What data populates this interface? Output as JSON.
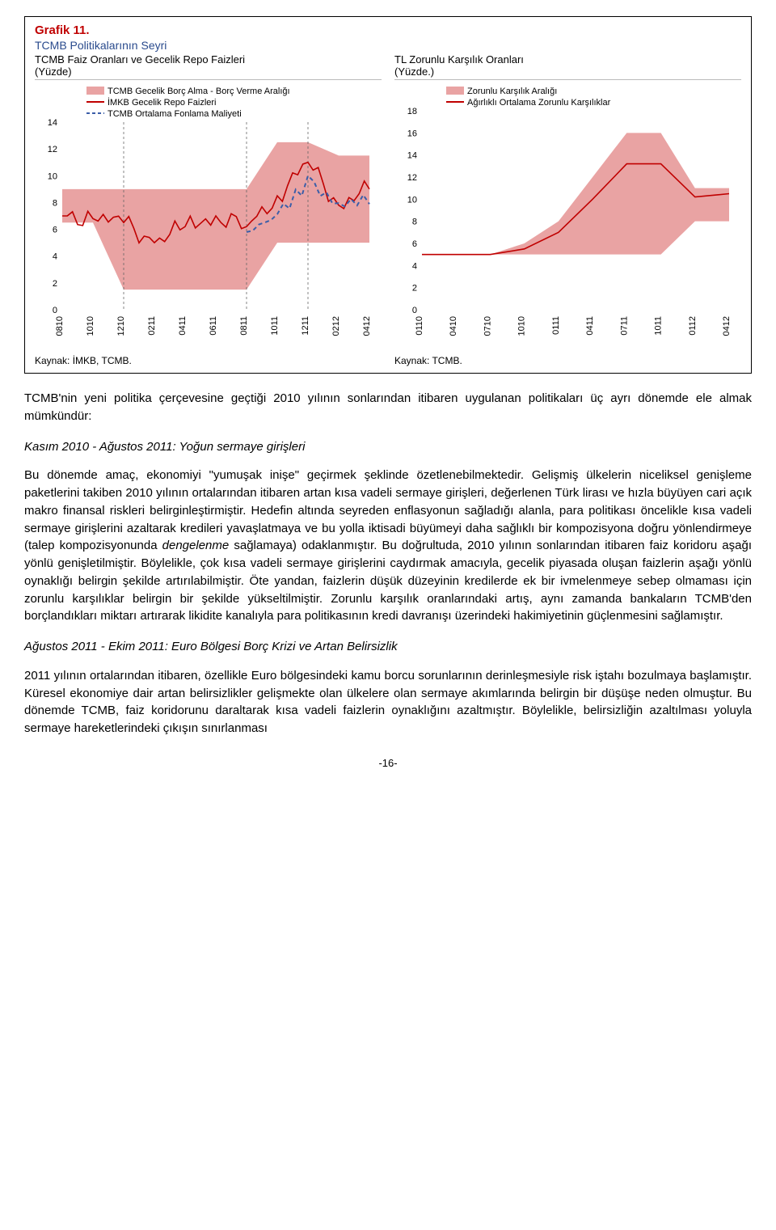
{
  "charts": {
    "grafik_label": "Grafik 11.",
    "grafik_subtitle": "TCMB Politikalarının Seyri",
    "left": {
      "header_line1": "TCMB Faiz Oranları ve Gecelik Repo Faizleri",
      "header_line2": "(Yüzde)",
      "legend": {
        "area": "TCMB Gecelik Borç Alma - Borç Verme Aralığı",
        "line_red": "İMKB Gecelik Repo Faizleri",
        "line_dash": "TCMB Ortalama Fonlama Maliyeti"
      },
      "ylim": [
        0,
        14
      ],
      "ytick_step": 2,
      "x_labels": [
        "0810",
        "1010",
        "1210",
        "0211",
        "0411",
        "0611",
        "0811",
        "1011",
        "1211",
        "0212",
        "0412"
      ],
      "area_low": [
        6.5,
        6.5,
        1.5,
        1.5,
        1.5,
        1.5,
        1.5,
        5.0,
        5.0,
        5.0,
        5.0
      ],
      "area_high": [
        9.0,
        9.0,
        9.0,
        9.0,
        9.0,
        9.0,
        9.0,
        12.5,
        12.5,
        11.5,
        11.5
      ],
      "line_red_pts": [
        7.0,
        6.8,
        6.5,
        5.0,
        6.2,
        7.0,
        6.2,
        8.5,
        11.0,
        7.8,
        9.0
      ],
      "line_dash_pts": [
        null,
        null,
        null,
        null,
        null,
        null,
        5.8,
        7.0,
        9.5,
        7.8,
        8.3
      ],
      "vlines_at": [
        2,
        6,
        8
      ],
      "colors": {
        "area": "#e9a3a3",
        "line_red": "#c00000",
        "line_dash": "#3b5ea8",
        "grid": "#cfcfcf",
        "axis_text": "#000"
      },
      "kaynak": "Kaynak: İMKB, TCMB."
    },
    "right": {
      "header_line1": "TL Zorunlu Karşılık Oranları",
      "header_line2": "(Yüzde.)",
      "legend": {
        "area": "Zorunlu Karşılık Aralığı",
        "line_red": "Ağırlıklı Ortalama Zorunlu Karşılıklar"
      },
      "ylim": [
        0,
        18
      ],
      "ytick_step": 2,
      "x_labels": [
        "0110",
        "0410",
        "0710",
        "1010",
        "0111",
        "0411",
        "0711",
        "1011",
        "0112",
        "0412"
      ],
      "area_low": [
        5.0,
        5.0,
        5.0,
        5.0,
        5.0,
        5.0,
        5.0,
        5.0,
        8.0,
        8.0
      ],
      "area_high": [
        5.0,
        5.0,
        5.0,
        6.0,
        8.0,
        12.0,
        16.0,
        16.0,
        11.0,
        11.0
      ],
      "line_red_pts": [
        5.0,
        5.0,
        5.0,
        5.5,
        7.0,
        10.0,
        13.2,
        13.2,
        10.2,
        10.5
      ],
      "colors": {
        "area": "#e9a3a3",
        "line_red": "#c00000",
        "grid": "#cfcfcf",
        "axis_text": "#000"
      },
      "kaynak": "Kaynak: TCMB."
    }
  },
  "body": {
    "p1": "TCMB'nin yeni politika çerçevesine geçtiği 2010 yılının sonlarından itibaren uygulanan politikaları üç ayrı dönemde ele almak mümkündür:",
    "s1": "Kasım 2010 - Ağustos 2011: Yoğun sermaye girişleri",
    "p2a": "Bu dönemde amaç, ekonomiyi \"yumuşak inişe\" geçirmek şeklinde özetlenebilmektedir. Gelişmiş ülkelerin niceliksel genişleme paketlerini takiben 2010 yılının ortalarından itibaren artan kısa vadeli sermaye girişleri, değerlenen Türk lirası ve hızla büyüyen cari açık makro finansal riskleri belirginleştirmiştir. Hedefin altında seyreden enflasyonun sağladığı alanla, para politikası öncelikle kısa vadeli sermaye girişlerini azaltarak kredileri yavaşlatmaya ve bu yolla iktisadi büyümeyi daha sağlıklı bir kompozisyona doğru yönlendirmeye (talep kompozisyonunda ",
    "p2italic": "dengelenme",
    "p2b": " sağlamaya) odaklanmıştır. Bu doğrultuda, 2010 yılının sonlarından itibaren faiz koridoru aşağı yönlü genişletilmiştir. Böylelikle, çok kısa vadeli sermaye girişlerini caydırmak amacıyla, gecelik piyasada oluşan faizlerin aşağı yönlü oynaklığı belirgin şekilde artırılabilmiştir. Öte yandan, faizlerin düşük düzeyinin kredilerde ek bir ivmelenmeye sebep olmaması için zorunlu karşılıklar belirgin bir şekilde yükseltilmiştir. Zorunlu karşılık oranlarındaki artış, aynı zamanda bankaların TCMB'den borçlandıkları miktarı artırarak likidite kanalıyla para politikasının kredi davranışı üzerindeki hakimiyetinin güçlenmesini sağlamıştır.",
    "s2": "Ağustos 2011 - Ekim 2011: Euro Bölgesi Borç Krizi ve Artan Belirsizlik",
    "p3": "2011 yılının ortalarından itibaren, özellikle Euro bölgesindeki kamu borcu sorunlarının derinleşmesiyle risk iştahı bozulmaya başlamıştır. Küresel ekonomiye dair artan belirsizlikler gelişmekte olan ülkelere olan sermaye akımlarında belirgin bir düşüşe neden olmuştur. Bu dönemde TCMB, faiz koridorunu daraltarak kısa vadeli faizlerin oynaklığını azaltmıştır. Böylelikle, belirsizliğin azaltılması yoluyla sermaye hareketlerindeki çıkışın sınırlanması"
  },
  "page_number": "-16-"
}
